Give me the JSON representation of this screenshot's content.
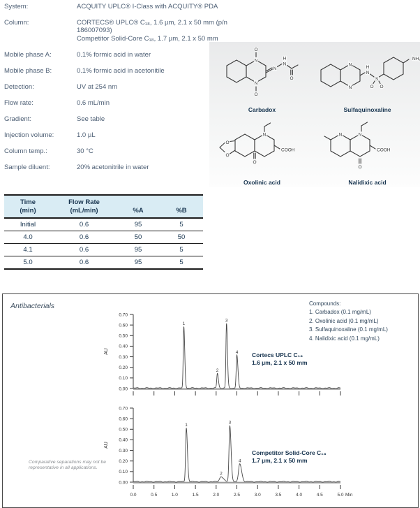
{
  "params": {
    "rows": [
      {
        "label": "System:",
        "value": "ACQUITY UPLC® I-Class with ACQUITY® PDA"
      },
      {
        "label": "Column:",
        "value": "CORTECS® UPLC® C₁₈, 1.6 µm, 2.1 x 50 mm (p/n 186007093)"
      },
      {
        "label": "",
        "value": "Competitor Solid-Core C₁₈, 1.7 µm, 2.1 x 50 mm"
      },
      {
        "label": "Mobile phase A:",
        "value": "0.1% formic acid in water"
      },
      {
        "label": "Mobile phase B:",
        "value": "0.1% formic acid in acetonitile"
      },
      {
        "label": "Detection:",
        "value": "UV at 254 nm"
      },
      {
        "label": "Flow rate:",
        "value": "0.6 mL/min"
      },
      {
        "label": "Gradient:",
        "value": "See table"
      },
      {
        "label": "Injection volume:",
        "value": "1.0 µL"
      },
      {
        "label": "Column temp.:",
        "value": "30 °C"
      },
      {
        "label": "Sample diluent:",
        "value": "20% acetonitrile in water"
      }
    ]
  },
  "structures": {
    "items": [
      {
        "name": "Carbadox"
      },
      {
        "name": "Sulfaquinoxaline"
      },
      {
        "name": "Oxolinic acid"
      },
      {
        "name": "Nalidixic acid"
      }
    ]
  },
  "gradient_table": {
    "headers": [
      {
        "line1": "Time",
        "line2": "(min)"
      },
      {
        "line1": "Flow Rate",
        "line2": "(mL/min)"
      },
      {
        "line1": "%A",
        "line2": ""
      },
      {
        "line1": "%B",
        "line2": ""
      }
    ],
    "rows": [
      [
        "Initial",
        "0.6",
        "95",
        "5"
      ],
      [
        "4.0",
        "0.6",
        "50",
        "50"
      ],
      [
        "4.1",
        "0.6",
        "95",
        "5"
      ],
      [
        "5.0",
        "0.6",
        "95",
        "5"
      ]
    ]
  },
  "figure": {
    "title": "Antibacterials",
    "compounds_header": "Compounds:",
    "compounds": [
      "1. Carbadox (0.1 mg/mL)",
      "2. Oxolinic acid (0.1 mg/mL)",
      "3. Sulfaquinoxaline (0.1 mg/mL)",
      "4. Nalidixic acid (0.1 mg/mL)"
    ],
    "note": "Comparative separations may not be representative in all applications."
  },
  "chart_data": [
    {
      "type": "line",
      "name": "cortecs-uplc-chromatogram",
      "label_line1": "Cortecs UPLC C₁₈",
      "label_line2": "1.6 µm, 2.1 x 50 mm",
      "ylabel": "AU",
      "x_unit": "Min",
      "xlim": [
        0.0,
        5.0
      ],
      "ylim": [
        0.0,
        0.7
      ],
      "ytick_step": 0.1,
      "xtick_step": 0.5,
      "show_x_labels": false,
      "peaks": [
        {
          "label": "1",
          "rt": 1.22,
          "height": 0.58,
          "sigma": 0.014
        },
        {
          "label": "2",
          "rt": 2.03,
          "height": 0.14,
          "sigma": 0.015
        },
        {
          "label": "3",
          "rt": 2.25,
          "height": 0.61,
          "sigma": 0.014
        },
        {
          "label": "4",
          "rt": 2.5,
          "height": 0.31,
          "sigma": 0.016
        }
      ]
    },
    {
      "type": "line",
      "name": "competitor-solid-core-chromatogram",
      "label_line1": "Competitor Solid-Core C₁₈",
      "label_line2": "1.7 µm, 2.1 x 50 mm",
      "ylabel": "AU",
      "x_unit": "Min",
      "xlim": [
        0.0,
        5.0
      ],
      "ylim": [
        0.0,
        0.7
      ],
      "ytick_step": 0.1,
      "xtick_step": 0.5,
      "show_x_labels": true,
      "peaks": [
        {
          "label": "1",
          "rt": 1.28,
          "height": 0.51,
          "sigma": 0.017
        },
        {
          "label": "2",
          "rt": 2.12,
          "height": 0.05,
          "sigma": 0.035
        },
        {
          "label": "3",
          "rt": 2.33,
          "height": 0.53,
          "sigma": 0.019
        },
        {
          "label": "4",
          "rt": 2.57,
          "height": 0.17,
          "sigma": 0.028
        }
      ]
    }
  ]
}
